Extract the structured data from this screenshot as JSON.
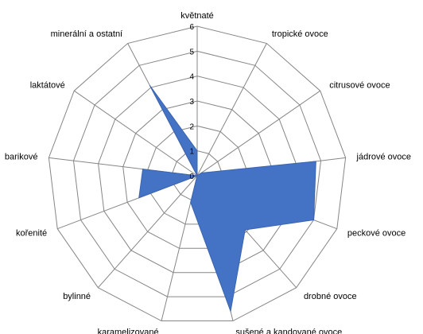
{
  "chart_data": {
    "type": "radar",
    "categories": [
      "květnaté",
      "tropické ovoce",
      "citrusové ovoce",
      "jádrové ovoce",
      "peckové ovoce",
      "drobné ovoce",
      "sušené a kandované ovoce",
      "karamelizované",
      "bylinné",
      "kořenité",
      "barikové",
      "laktátové",
      "minerální a ostatní"
    ],
    "series": [
      {
        "values": [
          1,
          0,
          0.2,
          4.8,
          5.0,
          2.9,
          5.6,
          1.1,
          0,
          2.5,
          2.2,
          0,
          4.1
        ],
        "color": "#4472C4"
      }
    ],
    "ticks": [
      "0",
      "1",
      "2",
      "3",
      "4",
      "5",
      "6"
    ],
    "rmin": 0,
    "rmax": 6,
    "grid": true,
    "legend": "none"
  }
}
